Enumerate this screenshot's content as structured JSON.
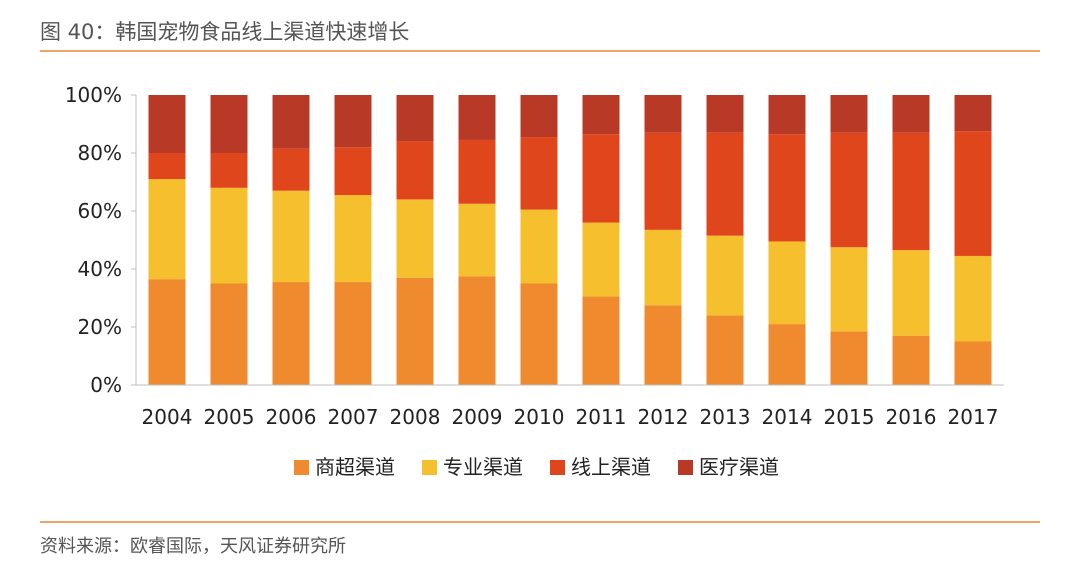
{
  "header": {
    "title": "图 40：韩国宠物食品线上渠道快速增长"
  },
  "footer": {
    "source": "资料来源：欧睿国际，天风证券研究所"
  },
  "chart_data": {
    "type": "bar",
    "stacked": true,
    "categories": [
      "2004",
      "2005",
      "2006",
      "2007",
      "2008",
      "2009",
      "2010",
      "2011",
      "2012",
      "2013",
      "2014",
      "2015",
      "2016",
      "2017"
    ],
    "series": [
      {
        "name": "商超渠道",
        "color": "#f08a2e",
        "values": [
          36.5,
          35,
          35.5,
          35.5,
          37,
          37.5,
          35,
          30.5,
          27.5,
          24,
          21,
          18.5,
          17,
          15
        ]
      },
      {
        "name": "专业渠道",
        "color": "#f6bf2e",
        "values": [
          34.5,
          33,
          31.5,
          30,
          27,
          25,
          25.5,
          25.5,
          26,
          27.5,
          28.5,
          29,
          29.5,
          29.5
        ]
      },
      {
        "name": "线上渠道",
        "color": "#e0461c",
        "values": [
          9,
          12,
          14.5,
          16.5,
          20,
          22,
          25,
          30.5,
          33.5,
          35.5,
          37,
          39.5,
          40.5,
          43
        ]
      },
      {
        "name": "医疗渠道",
        "color": "#b83a26",
        "values": [
          20,
          20,
          18.5,
          18,
          16,
          15.5,
          14.5,
          13.5,
          13,
          13,
          13.5,
          13,
          13,
          12.5
        ]
      }
    ],
    "yticks": [
      "0%",
      "20%",
      "40%",
      "60%",
      "80%",
      "100%"
    ],
    "ylim": [
      0,
      100
    ],
    "grid": false,
    "legend_position": "bottom"
  }
}
